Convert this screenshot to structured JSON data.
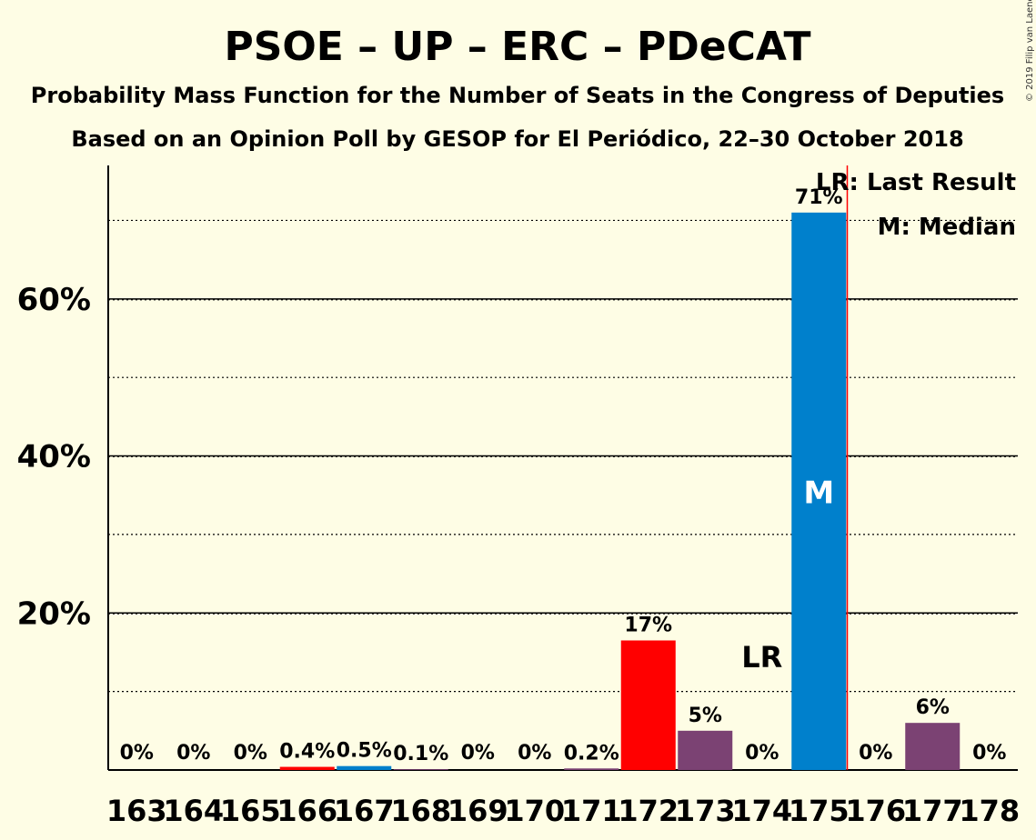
{
  "title": "PSOE – UP – ERC – PDeCAT",
  "subtitle1": "Probability Mass Function for the Number of Seats in the Congress of Deputies",
  "subtitle2": "Based on an Opinion Poll by GESOP for El Periódico, 22–30 October 2018",
  "copyright": "© 2019 Filip van Laenen",
  "legend": {
    "last_result": "LR: Last Result",
    "median": "M: Median"
  },
  "colors": {
    "background": "#fefde5",
    "psoe_red": "#ff0000",
    "up_purple": "#7b4273",
    "median_blue": "#0080cc",
    "last_result_line": "#ff0000"
  },
  "chart_data": {
    "type": "bar",
    "categories": [
      "163",
      "164",
      "165",
      "166",
      "167",
      "168",
      "169",
      "170",
      "171",
      "172",
      "173",
      "174",
      "175",
      "176",
      "177",
      "178"
    ],
    "values": [
      0,
      0,
      0,
      0.4,
      0.5,
      0.1,
      0,
      0,
      0.2,
      16.5,
      5,
      0,
      71,
      0,
      6,
      0
    ],
    "labels": [
      "0%",
      "0%",
      "0%",
      "0.4%",
      "0.5%",
      "0.1%",
      "0%",
      "0%",
      "0.2%",
      "17%",
      "5%",
      "0%",
      "71%",
      "0%",
      "6%",
      "0%"
    ],
    "bar_colors": [
      "#7b4273",
      "#7b4273",
      "#7b4273",
      "#ff0000",
      "#0080cc",
      "#7b4273",
      "#7b4273",
      "#7b4273",
      "#7b4273",
      "#ff0000",
      "#7b4273",
      "#7b4273",
      "#0080cc",
      "#7b4273",
      "#7b4273",
      "#7b4273"
    ],
    "ylim": [
      0,
      77
    ],
    "yticks": [
      20,
      40,
      60
    ],
    "ytick_labels": [
      "20%",
      "40%",
      "60%"
    ],
    "minor_gridlines": [
      10,
      30,
      50,
      70
    ],
    "last_result_category": "173",
    "last_result_label": "LR",
    "median_category": "175",
    "median_label": "M",
    "last_result_line_after": "175"
  }
}
